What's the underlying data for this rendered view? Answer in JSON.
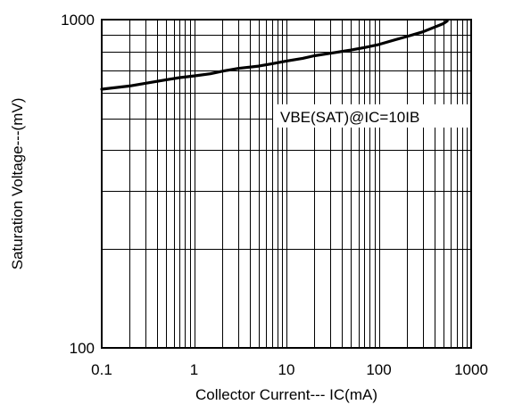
{
  "chart_data": {
    "type": "line",
    "title": "",
    "xlabel": "Collector Current--- IC(mA)",
    "ylabel": "Saturation Voltage---(mV)",
    "xscale": "log",
    "yscale": "log",
    "xlim": [
      0.1,
      1000
    ],
    "ylim": [
      100,
      1000
    ],
    "x_tick_labels": [
      "0.1",
      "1",
      "10",
      "100",
      "1000"
    ],
    "y_tick_labels": [
      "100",
      "1000"
    ],
    "grid": true,
    "annotation": "VBE(SAT)@IC=10IB",
    "series": [
      {
        "x": [
          0.1,
          0.2,
          0.3,
          0.5,
          0.7,
          1,
          1.5,
          2,
          3,
          5,
          7,
          10,
          15,
          20,
          30,
          50,
          70,
          100,
          150,
          200,
          300,
          500,
          550
        ],
        "values": [
          614,
          628,
          640,
          656,
          666,
          674,
          684,
          696,
          710,
          722,
          734,
          748,
          762,
          776,
          790,
          808,
          822,
          840,
          868,
          888,
          918,
          972,
          990
        ]
      }
    ]
  }
}
